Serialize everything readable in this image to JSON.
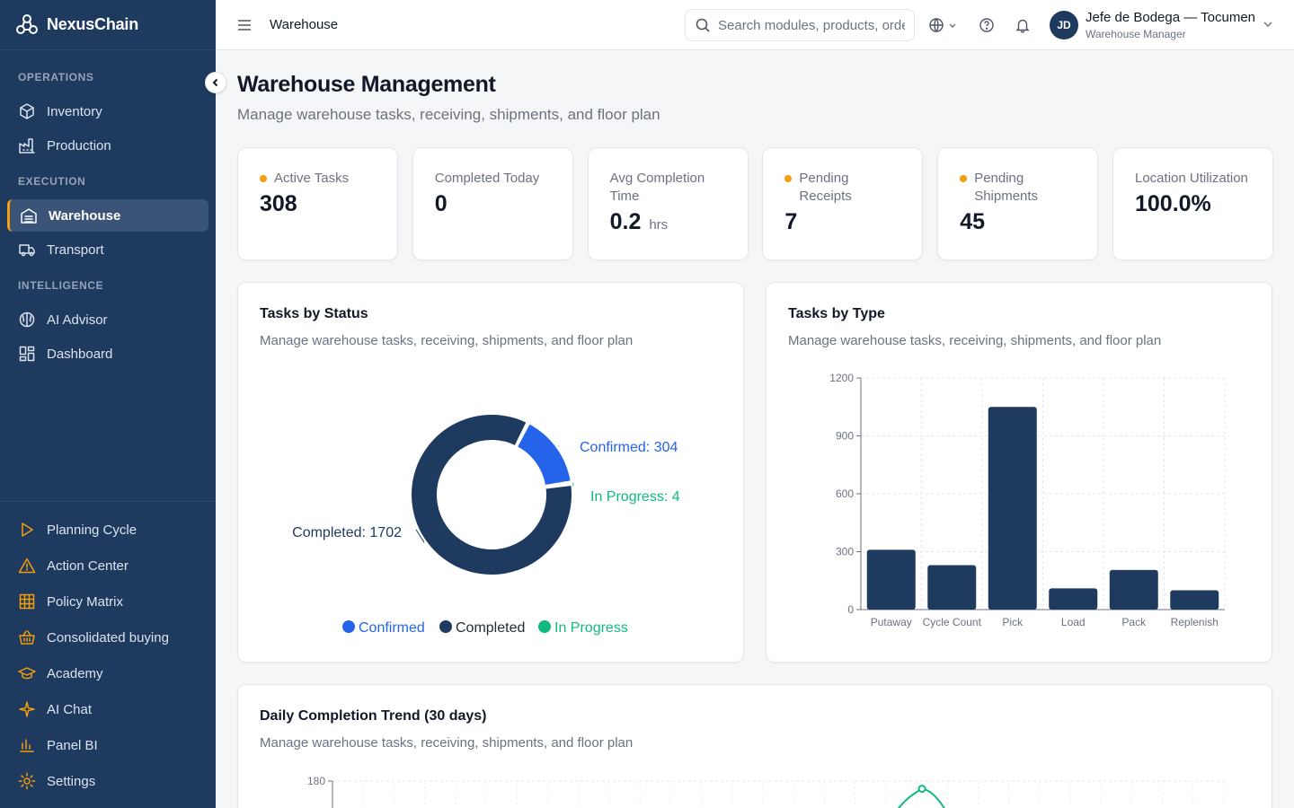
{
  "app": {
    "name": "NexusChain"
  },
  "sidebar": {
    "sections": [
      {
        "label": "OPERATIONS",
        "items": [
          {
            "label": "Inventory",
            "icon": "box-icon"
          },
          {
            "label": "Production",
            "icon": "factory-icon"
          }
        ]
      },
      {
        "label": "EXECUTION",
        "items": [
          {
            "label": "Warehouse",
            "icon": "warehouse-icon",
            "active": true
          },
          {
            "label": "Transport",
            "icon": "truck-icon"
          }
        ]
      },
      {
        "label": "INTELLIGENCE",
        "items": [
          {
            "label": "AI Advisor",
            "icon": "brain-icon"
          },
          {
            "label": "Dashboard",
            "icon": "dashboard-icon"
          }
        ]
      }
    ],
    "bottom_items": [
      {
        "label": "Planning Cycle",
        "icon": "play-icon"
      },
      {
        "label": "Action Center",
        "icon": "alert-triangle-icon"
      },
      {
        "label": "Policy Matrix",
        "icon": "grid-icon"
      },
      {
        "label": "Consolidated buying",
        "icon": "basket-icon"
      },
      {
        "label": "Academy",
        "icon": "graduation-cap-icon"
      },
      {
        "label": "AI Chat",
        "icon": "sparkles-icon"
      },
      {
        "label": "Panel BI",
        "icon": "bar-chart-icon"
      },
      {
        "label": "Settings",
        "icon": "gear-icon"
      }
    ]
  },
  "topbar": {
    "breadcrumb": "Warehouse",
    "search_placeholder": "Search modules, products, orders...",
    "user": {
      "initials": "JD",
      "name": "Jefe de Bodega — Tocumen",
      "role": "Warehouse Manager"
    }
  },
  "page": {
    "title": "Warehouse Management",
    "subtitle": "Manage warehouse tasks, receiving, shipments, and floor plan"
  },
  "kpis": [
    {
      "label": "Active Tasks",
      "value": "308",
      "dot": true
    },
    {
      "label": "Completed Today",
      "value": "0",
      "dot": false
    },
    {
      "label": "Avg Completion Time",
      "value": "0.2",
      "unit": "hrs",
      "dot": false
    },
    {
      "label": "Pending Receipts",
      "value": "7",
      "dot": true
    },
    {
      "label": "Pending Shipments",
      "value": "45",
      "dot": true
    },
    {
      "label": "Location Utilization",
      "value": "100.0%",
      "dot": false
    }
  ],
  "colors": {
    "navy": "#1e3a5f",
    "blue": "#2563eb",
    "green": "#10b981",
    "amber": "#f59e0b"
  },
  "charts": {
    "status": {
      "title": "Tasks by Status",
      "subtitle": "Manage warehouse tasks, receiving, shipments, and floor plan"
    },
    "type": {
      "title": "Tasks by Type",
      "subtitle": "Manage warehouse tasks, receiving, shipments, and floor plan"
    },
    "trend": {
      "title": "Daily Completion Trend (30 days)",
      "subtitle": "Manage warehouse tasks, receiving, shipments, and floor plan"
    }
  },
  "chart_data": [
    {
      "type": "pie",
      "slices": [
        {
          "name": "Confirmed",
          "value": 304,
          "label": "Confirmed: 304",
          "color": "#2563eb"
        },
        {
          "name": "In Progress",
          "value": 4,
          "label": "In Progress: 4",
          "color": "#10b981"
        },
        {
          "name": "Completed",
          "value": 1702,
          "label": "Completed: 1702",
          "color": "#1e3a5f"
        }
      ],
      "legend": [
        "Confirmed",
        "Completed",
        "In Progress"
      ],
      "legend_position": "bottom"
    },
    {
      "type": "bar",
      "categories": [
        "Putaway",
        "Cycle Count",
        "Pick",
        "Load",
        "Pack",
        "Replenish"
      ],
      "values": [
        310,
        230,
        1050,
        110,
        205,
        100
      ],
      "ylim": [
        0,
        1200
      ],
      "yticks": [
        0,
        300,
        600,
        900,
        1200
      ],
      "grid": true
    },
    {
      "type": "line",
      "ylim": [
        0,
        180
      ],
      "yticks": [
        180
      ],
      "points": [
        {
          "x": 16,
          "y": 160
        },
        {
          "x": 17,
          "y": 172
        },
        {
          "x": 18,
          "y": 158
        }
      ],
      "x_count": 30,
      "grid": true
    }
  ]
}
